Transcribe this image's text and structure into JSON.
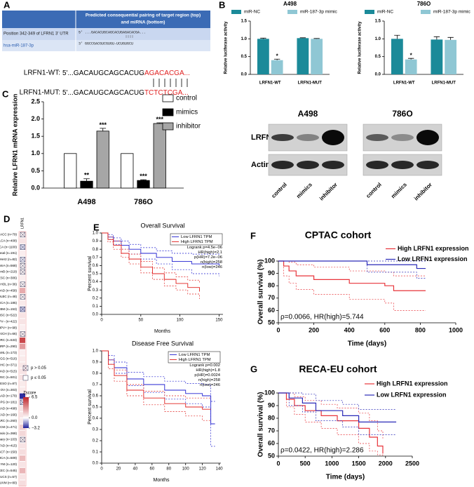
{
  "panel_labels": [
    "A",
    "B",
    "C",
    "D",
    "E",
    "F",
    "G"
  ],
  "panel_a": {
    "header": [
      "Predicted consequential pairing of target region (top)",
      "and miRNA (bottom)"
    ],
    "rows": [
      {
        "name": "Position 342-349 of LFRN1 3' UTR",
        "seq": "5'  ...GACACUGCAGCACUGAGACACGA..."
      },
      {
        "name": "hsa-miR-187-3p",
        "seq": "3'  GGCCGACGUCGUGU-UCUGUGCU"
      }
    ],
    "wt": {
      "label": "LRFN1-WT:",
      "seq": "5'...GACAUGCAGCACUG",
      "site": "AGACACGA..."
    },
    "mut": {
      "label": "LRFN1-MUT:",
      "seq": "5'...GACAUGCAGCACUG",
      "site": "TCTCTCGA..."
    }
  },
  "western": {
    "cell_lines": [
      "A498",
      "786O"
    ],
    "proteins": [
      "LRFN1",
      "Actin"
    ],
    "lanes": [
      "control",
      "mimics",
      "inhibitor"
    ]
  },
  "chart_data": [
    {
      "type": "bar",
      "title": "A498",
      "ylabel": "Relative luciferase activity",
      "categories": [
        "LRFN1-WT",
        "LRFN1-MUT"
      ],
      "series": [
        {
          "name": "miR-NC",
          "color": "#1b8a99",
          "values": [
            1.0,
            1.02
          ],
          "errors": [
            0.02,
            0.01
          ],
          "annotations": [
            null,
            null
          ]
        },
        {
          "name": "miR-187-3p mimic",
          "color": "#8fc7d4",
          "values": [
            0.4,
            1.0
          ],
          "errors": [
            0.03,
            0.01
          ],
          "annotations": [
            "*",
            null
          ]
        }
      ],
      "ylim": [
        0,
        1.5
      ],
      "yticks": [
        {
          "value": 0,
          "label": "0.0"
        },
        0.5,
        {
          "value": 1,
          "label": "1.0"
        },
        1.5
      ],
      "legend": "top"
    },
    {
      "type": "bar",
      "title": "786O",
      "ylabel": "Relative luciferase activity",
      "categories": [
        "LRFN1-WT",
        "LRFN1-MUT"
      ],
      "series": [
        {
          "name": "miR-NC",
          "color": "#1b8a99",
          "values": [
            1.0,
            0.98
          ],
          "errors": [
            0.1,
            0.08
          ],
          "annotations": [
            null,
            null
          ]
        },
        {
          "name": "miR-187-3p mimic",
          "color": "#8fc7d4",
          "values": [
            0.42,
            0.97
          ],
          "errors": [
            0.03,
            0.07
          ],
          "annotations": [
            "*",
            null
          ]
        }
      ],
      "ylim": [
        0,
        1.5
      ],
      "yticks": [
        {
          "value": 0,
          "label": "0.0"
        },
        0.5,
        {
          "value": 1,
          "label": "1.0"
        },
        1.5
      ],
      "legend": "top"
    },
    {
      "type": "bar",
      "ylabel": "Relative LFRN1 mRNA expression",
      "categories": [
        "A498",
        "786O"
      ],
      "edgecolor": "#000000",
      "series": [
        {
          "name": "control",
          "color": "#ffffff",
          "values": [
            1.0,
            1.0
          ]
        },
        {
          "name": "mimics",
          "color": "#000000",
          "values": [
            0.2,
            0.22
          ],
          "errors": [
            0.07,
            0.02
          ],
          "annotations": [
            "**",
            "***"
          ]
        },
        {
          "name": "inhibitor",
          "color": "#a6a6a6",
          "values": [
            1.65,
            1.87
          ],
          "errors": [
            0.08,
            0.02
          ],
          "annotations": [
            "***",
            "***"
          ]
        }
      ],
      "ylim": [
        0,
        2.5
      ],
      "yticks": [
        {
          "value": 0,
          "label": "0.0"
        },
        0.5,
        {
          "value": 1,
          "label": "1.0"
        },
        1.5,
        {
          "value": 2,
          "label": "2.0"
        },
        2.5
      ],
      "legend": "right"
    },
    {
      "type": "line",
      "drawstyle": "steps",
      "title": "Overall Survival",
      "xlabel": "Months",
      "ylabel": "Percent survival",
      "series": [
        {
          "name": "Low LFRN1 TPM",
          "color": "#2020d0",
          "x": [
            0,
            8,
            15,
            25,
            35,
            50,
            70,
            90,
            115,
            150
          ],
          "values": [
            1,
            0.95,
            0.9,
            0.85,
            0.8,
            0.75,
            0.7,
            0.65,
            0.62,
            0.6
          ],
          "ci_low": [
            1,
            0.92,
            0.86,
            0.8,
            0.74,
            0.68,
            0.62,
            0.55,
            0.5,
            0.47
          ],
          "ci_high": [
            1,
            0.98,
            0.94,
            0.9,
            0.86,
            0.82,
            0.78,
            0.75,
            0.74,
            0.73
          ]
        },
        {
          "name": "High LFRN1 TPM",
          "color": "#e0201f",
          "x": [
            0,
            8,
            15,
            25,
            35,
            50,
            65,
            80,
            95,
            110,
            125
          ],
          "values": [
            1,
            0.92,
            0.85,
            0.75,
            0.68,
            0.58,
            0.5,
            0.43,
            0.38,
            0.33,
            0.28
          ],
          "ci_low": [
            1,
            0.89,
            0.8,
            0.7,
            0.62,
            0.51,
            0.43,
            0.35,
            0.3,
            0.25,
            0.19
          ],
          "ci_high": [
            1,
            0.95,
            0.9,
            0.8,
            0.74,
            0.65,
            0.57,
            0.51,
            0.46,
            0.42,
            0.38
          ]
        }
      ],
      "stats": [
        "Logrank p=4.5e−06",
        "HR(high)=2.1",
        "p(HR)=7.2e−06",
        "n(high)=258",
        "n(low)=246"
      ],
      "xlim": [
        0,
        155
      ],
      "xticks": [
        0,
        50,
        100,
        150
      ],
      "ylim": [
        0,
        1
      ],
      "yticks": [
        {
          "value": 0,
          "label": "0.0"
        },
        0.1,
        0.2,
        0.3,
        0.4,
        0.5,
        0.6,
        0.7,
        0.8,
        0.9,
        {
          "value": 1,
          "label": "1.0"
        }
      ],
      "legend": "upper right"
    },
    {
      "type": "line",
      "drawstyle": "steps",
      "title": "Disease Free Survival",
      "xlabel": "Months",
      "ylabel": "Percent survival",
      "series": [
        {
          "name": "Low LFRN1 TPM",
          "color": "#2020d0",
          "x": [
            0,
            8,
            15,
            30,
            50,
            75,
            100,
            120,
            130,
            135
          ],
          "values": [
            1,
            0.92,
            0.85,
            0.75,
            0.7,
            0.65,
            0.62,
            0.6,
            0.35,
            0.35
          ],
          "ci_low": [
            1,
            0.88,
            0.8,
            0.69,
            0.63,
            0.57,
            0.53,
            0.5,
            0.15,
            0.15
          ],
          "ci_high": [
            1,
            0.96,
            0.9,
            0.81,
            0.77,
            0.73,
            0.71,
            0.7,
            0.55,
            0.55
          ]
        },
        {
          "name": "High LFRN1 TPM",
          "color": "#e0201f",
          "x": [
            0,
            8,
            15,
            30,
            50,
            75,
            100,
            120,
            130
          ],
          "values": [
            1,
            0.88,
            0.78,
            0.65,
            0.58,
            0.53,
            0.5,
            0.48,
            0.48
          ],
          "ci_low": [
            1,
            0.84,
            0.73,
            0.6,
            0.52,
            0.46,
            0.42,
            0.38,
            0.38
          ],
          "ci_high": [
            1,
            0.92,
            0.83,
            0.7,
            0.64,
            0.6,
            0.58,
            0.58,
            0.58
          ]
        }
      ],
      "stats": [
        "Logrank p=0.002",
        "HR(high)=1.8",
        "p(HR)=0.0024",
        "n(high)=258",
        "n(low)=246"
      ],
      "xlim": [
        0,
        142
      ],
      "xticks": [
        0,
        20,
        40,
        60,
        80,
        100,
        120,
        140
      ],
      "ylim": [
        0,
        1
      ],
      "yticks": [
        {
          "value": 0,
          "label": "0.0"
        },
        0.1,
        0.2,
        0.3,
        0.4,
        0.5,
        0.6,
        0.7,
        0.8,
        0.9,
        {
          "value": 1,
          "label": "1.0"
        }
      ],
      "legend": "upper right"
    },
    {
      "type": "line",
      "drawstyle": "steps",
      "title": "CPTAC cohort",
      "xlabel": "Time (days)",
      "ylabel": "Overall survival (%)",
      "series": [
        {
          "name": "High LRFN1 expression",
          "color": "#e8343a",
          "x": [
            0,
            30,
            60,
            100,
            200,
            400,
            600,
            650,
            830
          ],
          "values": [
            100,
            96,
            92,
            88,
            85,
            82,
            80,
            76,
            76
          ],
          "ci_low": [
            100,
            88,
            82,
            77,
            73,
            69,
            66,
            60,
            60
          ],
          "ci_high": [
            100,
            100,
            99,
            97,
            95,
            92,
            91,
            88,
            88
          ]
        },
        {
          "name": "Low LRFN1 expression",
          "color": "#2a2ab8",
          "x": [
            0,
            500,
            780,
            830
          ],
          "values": [
            100,
            97,
            94,
            94
          ],
          "ci_low": [
            100,
            91,
            86,
            86
          ],
          "ci_high": [
            100,
            100,
            100,
            100
          ]
        }
      ],
      "annotation": "ρ=0.0066, HR(high)=5.744",
      "xlim": [
        0,
        1000
      ],
      "xticks": [
        0,
        200,
        400,
        600,
        800,
        1000
      ],
      "ylim": [
        50,
        100
      ],
      "yticks": [
        50,
        60,
        70,
        80,
        90,
        100
      ],
      "legend": "upper right"
    },
    {
      "type": "line",
      "drawstyle": "steps",
      "title": "RECA-EU cohort",
      "xlabel": "Time (days)",
      "ylabel": "Overall survival (%)",
      "series": [
        {
          "name": "High LRFN1 expression",
          "color": "#e8343a",
          "x": [
            0,
            150,
            300,
            500,
            800,
            1100,
            1500,
            1700,
            1850,
            1950
          ],
          "values": [
            100,
            95,
            90,
            86,
            82,
            78,
            72,
            65,
            58,
            52
          ],
          "ci_low": [
            100,
            89,
            83,
            77,
            72,
            67,
            60,
            54,
            51,
            50
          ],
          "ci_high": [
            100,
            100,
            97,
            94,
            91,
            88,
            84,
            78,
            70,
            64
          ]
        },
        {
          "name": "Low LRFN1 expression",
          "color": "#2a2ab8",
          "x": [
            0,
            200,
            450,
            700,
            1200,
            1500,
            2200
          ],
          "values": [
            100,
            96,
            92,
            86,
            82,
            77,
            77
          ],
          "ci_low": [
            100,
            90,
            85,
            78,
            73,
            67,
            67
          ],
          "ci_high": [
            100,
            100,
            99,
            94,
            91,
            87,
            87
          ]
        }
      ],
      "annotation": "ρ=0.0422, HR(high)=2.286",
      "xlim": [
        0,
        2500
      ],
      "xticks": [
        0,
        500,
        1000,
        1500,
        2000,
        2500
      ],
      "ylim": [
        50,
        100
      ],
      "yticks": [
        50,
        60,
        70,
        80,
        90,
        100
      ],
      "legend": "upper right"
    },
    {
      "type": "heatmap",
      "column": "LRFN1",
      "rows": [
        "ACC (n=79)",
        "BLCA (n=408)",
        "BRCA (n=1100)",
        "BRCA−Basal (n=191)",
        "BRCA−Her2 (n=82)",
        "BRCA−LumA (n=568)",
        "BRCA−LumB (n=219)",
        "CESC (n=306)",
        "CHOL (n=36)",
        "COAD (n=458)",
        "DLBC (n=48)",
        "ESCA (n=185)",
        "GBM (n=153)",
        "HNSC (n=522)",
        "HNSC−HPV− (n=422)",
        "HNSC−HPV+ (n=98)",
        "KICH (n=66)",
        "KIRC (n=533)",
        "KIRP (n=290)",
        "LAML (n=173)",
        "LGG (n=516)",
        "LIHC (n=371)",
        "LUAD (n=515)",
        "LUSC (n=501)",
        "MESO (n=87)",
        "OV (n=303)",
        "PAAD (n=179)",
        "PCPG (n=181)",
        "PRAD (n=498)",
        "READ (n=166)",
        "SARC (n=260)",
        "SKCM (n=471)",
        "SKCM−Metastasis (n=368)",
        "SKCM−Primary (n=103)",
        "STAD (n=415)",
        "TGCT (n=150)",
        "THCA (n=509)",
        "THYM (n=120)",
        "UCEC (n=545)",
        "UCS (n=57)",
        "UVM (n=80)"
      ],
      "values": [
        0.3,
        0.8,
        -0.5,
        0.5,
        -0.3,
        0.2,
        0.3,
        0.5,
        0.2,
        2.5,
        0.3,
        0.6,
        -0.8,
        0.8,
        0.8,
        0.5,
        0.4,
        5.5,
        3.0,
        0.5,
        0.6,
        0.7,
        0.8,
        0.9,
        0.6,
        0.6,
        -3.0,
        -0.5,
        0.8,
        0.8,
        0.6,
        1.5,
        1.2,
        0.4,
        0.8,
        1.0,
        2.0,
        0.8,
        2.2,
        0.8,
        1.0
      ],
      "significant": [
        false,
        true,
        false,
        true,
        false,
        false,
        false,
        true,
        false,
        true,
        false,
        true,
        false,
        true,
        true,
        true,
        false,
        true,
        true,
        true,
        true,
        true,
        true,
        true,
        true,
        true,
        true,
        false,
        true,
        true,
        true,
        true,
        true,
        false,
        true,
        true,
        true,
        true,
        true,
        true,
        true
      ],
      "legend": [
        "p > 0.05",
        "p ≤ 0.05"
      ],
      "colorbar_title": "Zscore",
      "colorbar_ticks": [
        6.5,
        {
          "value": 0,
          "label": "0.0"
        },
        {
          "value": -3.2,
          "label": "−3.2"
        }
      ],
      "vlim": [
        -3.2,
        6.5
      ],
      "colors": [
        "#20209a",
        "#ffffff",
        "#c0252a"
      ]
    }
  ]
}
